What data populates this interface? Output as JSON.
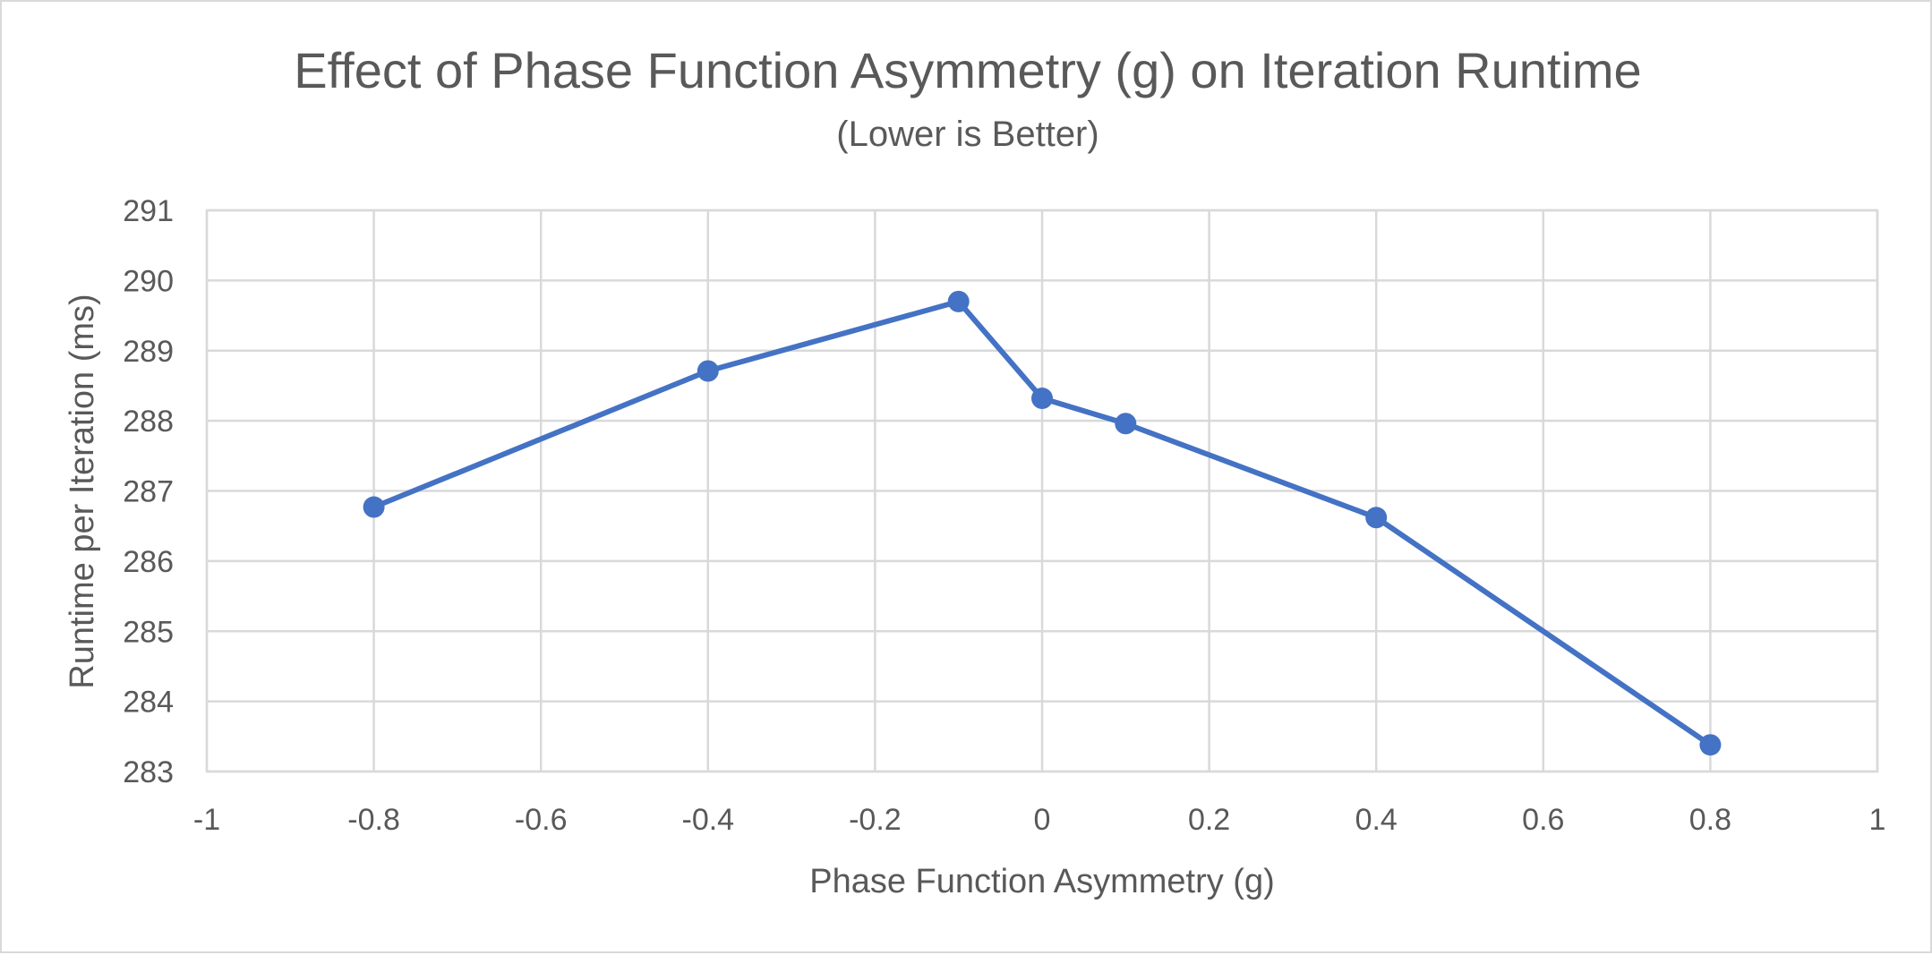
{
  "chart_data": {
    "type": "scatter",
    "title": "Effect of Phase Function Asymmetry (g) on Iteration Runtime",
    "subtitle": "(Lower is Better)",
    "xlabel": "Phase Function Asymmetry (g)",
    "ylabel": "Runtime per Iteration (ms)",
    "xlim": [
      -1,
      1
    ],
    "ylim": [
      283,
      291
    ],
    "x_ticks": [
      -1,
      -0.8,
      -0.6,
      -0.4,
      -0.2,
      0,
      0.2,
      0.4,
      0.6,
      0.8,
      1
    ],
    "x_tick_labels": [
      "-1",
      "-0.8",
      "-0.6",
      "-0.4",
      "-0.2",
      "0",
      "0.2",
      "0.4",
      "0.6",
      "0.8",
      "1"
    ],
    "y_ticks": [
      283,
      284,
      285,
      286,
      287,
      288,
      289,
      290,
      291
    ],
    "y_tick_labels": [
      "283",
      "284",
      "285",
      "286",
      "287",
      "288",
      "289",
      "290",
      "291"
    ],
    "grid": true,
    "legend": "none",
    "series": [
      {
        "color": "#4472c4",
        "marker": "circle",
        "line": "straight",
        "x": [
          -0.8,
          -0.4,
          -0.1,
          0,
          0.1,
          0.4,
          0.8
        ],
        "y": [
          286.77,
          288.71,
          289.7,
          288.32,
          287.96,
          286.62,
          283.38
        ]
      }
    ]
  }
}
